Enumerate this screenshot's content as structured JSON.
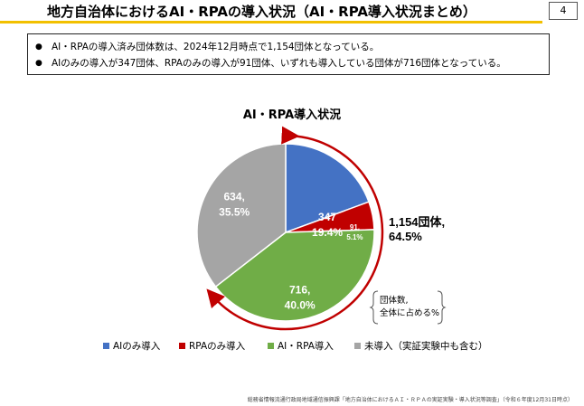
{
  "header": {
    "title": "地方自治体におけるAI・RPAの導入状況（AI・RPA導入状況まとめ）",
    "page_number": "4",
    "accent_color": "#f2c000"
  },
  "bullets": [
    "AI・RPAの導入済み団体数は、2024年12月時点で1,154団体となっている。",
    "AIのみの導入が347団体、RPAのみの導入が91団体、いずれも導入している団体が716団体となっている。"
  ],
  "bullet_marker": "●",
  "chart_data": {
    "type": "pie",
    "title": "AI・RPA導入状況",
    "slices": [
      {
        "name": "AIのみ導入",
        "count": "347",
        "percent": "19.4%",
        "value": 19.4,
        "color": "#4472c4",
        "label_color": "#ffffff"
      },
      {
        "name": "RPAのみ導入",
        "count": "91,",
        "percent": "5.1%",
        "value": 5.1,
        "color": "#c00000",
        "label_color": "#ffffff"
      },
      {
        "name": "AI・RPA導入",
        "count": "716,",
        "percent": "40.0%",
        "value": 40.0,
        "color": "#70ad47",
        "label_color": "#ffffff"
      },
      {
        "name": "未導入（実証実験中も含む）",
        "count": "634,",
        "percent": "35.5%",
        "value": 35.5,
        "color": "#a5a5a5",
        "label_color": "#ffffff"
      }
    ],
    "callout_line1": "1,154団体,",
    "callout_line2": "64.5%",
    "brace_note_line1": "団体数,",
    "brace_note_line2": "全体に占める%",
    "arc_color": "#c00000",
    "legend_position": "bottom"
  },
  "source_note": "総務省情報流通行政局地域通信振興課「地方自治体におけるＡＩ・ＲＰＡの実証実験・導入状況等調査」（令和６年度12月31日時点）"
}
